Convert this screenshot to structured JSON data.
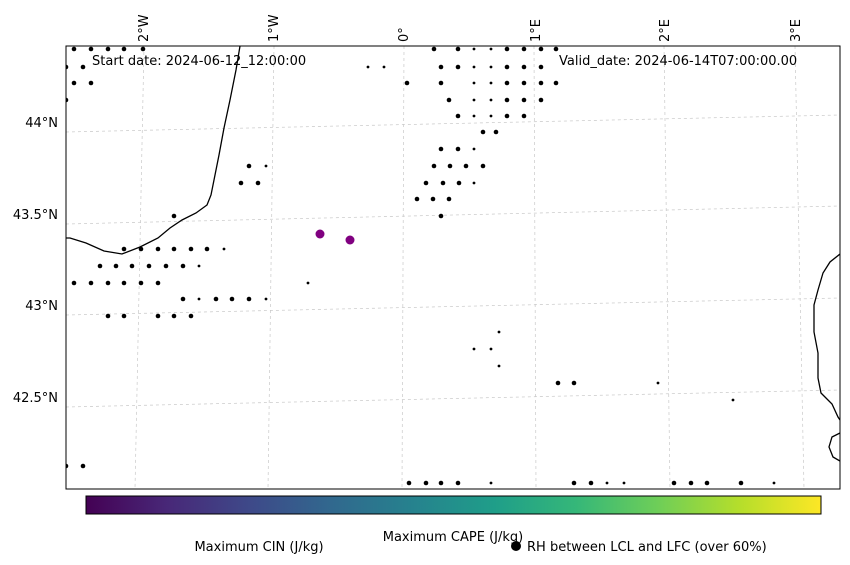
{
  "map": {
    "start_label": "Start date: 2024-06-12_12:00:00",
    "valid_label": "Valid_date: 2024-06-14T07:00:00.00",
    "lon_labels": [
      "2°W",
      "1°W",
      "0°",
      "1°E",
      "2°E",
      "3°E"
    ],
    "lat_labels": [
      "44°N",
      "43.5°N",
      "43°N",
      "42.5°N"
    ]
  },
  "legend": {
    "cape_label": "Maximum CAPE (J/kg)",
    "cin_label": "Maximum CIN (J/kg)",
    "cin_color": "#ff0000",
    "rh_label": "RH between LCL and LFC (over 60%)"
  },
  "colorbar": {
    "colormap": "viridis",
    "stops": [
      "#440154",
      "#482878",
      "#3e4989",
      "#31688e",
      "#26828e",
      "#1f9e89",
      "#35b779",
      "#6ece58",
      "#b5de2b",
      "#fde725"
    ]
  },
  "markers": {
    "cape_color": "#800080",
    "rh_color": "#000000"
  }
}
